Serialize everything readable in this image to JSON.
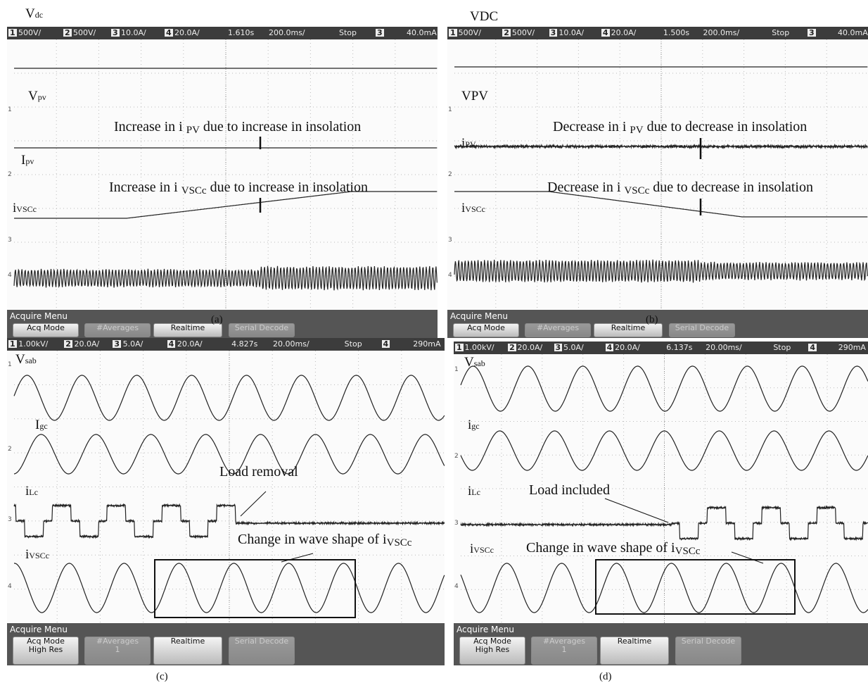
{
  "panels": [
    {
      "caption": "(a)",
      "title": {
        "base": "V",
        "sub": "dc"
      },
      "status": [
        "1",
        "500V/",
        "2",
        "500V/",
        "3",
        "10.0A/",
        "4",
        "20.0A/",
        "1.610s",
        "200.0ms/",
        "Stop",
        "3",
        "40.0mA"
      ],
      "markers": [
        "1",
        "2",
        "3",
        "4"
      ],
      "traces": [
        {
          "base": "V",
          "sub": "pv"
        },
        {
          "base": "I",
          "sub": "pv"
        },
        {
          "base": "i",
          "sub": "VSCc"
        }
      ],
      "annotations": [
        [
          "Increase in i ",
          "PV",
          " due to increase in insolation"
        ],
        [
          "Increase in i ",
          "VSCc",
          " due to increase in insolation"
        ]
      ],
      "menu": {
        "title": "Acquire Menu",
        "buttons": [
          [
            "Acq Mode"
          ],
          [
            "#Averages"
          ],
          [
            "Realtime"
          ],
          [
            "Serial Decode"
          ]
        ]
      }
    },
    {
      "caption": "(b)",
      "title": {
        "base": "VDC"
      },
      "status": [
        "1",
        "500V/",
        "2",
        "500V/",
        "3",
        "10.0A/",
        "4",
        "20.0A/",
        "1.500s",
        "200.0ms/",
        "Stop",
        "3",
        "40.0mA"
      ],
      "markers": [
        "1",
        "2",
        "3",
        "4"
      ],
      "traces": [
        {
          "base": "VPV"
        },
        {
          "base": "i",
          "sub": "PV"
        },
        {
          "base": "i",
          "sub": "VSCc"
        }
      ],
      "annotations": [
        [
          "Decrease in i ",
          "PV",
          " due to decrease in insolation"
        ],
        [
          "Decrease in i ",
          "VSCc",
          " due to decrease in insolation"
        ]
      ],
      "menu": {
        "title": "Acquire Menu",
        "buttons": [
          [
            "Acq Mode"
          ],
          [
            "#Averages"
          ],
          [
            "Realtime"
          ],
          [
            "Serial Decode"
          ]
        ]
      }
    },
    {
      "caption": "(c)",
      "status": [
        "1",
        "1.00kV/",
        "2",
        "20.0A/",
        "3",
        "5.0A/",
        "4",
        "20.0A/",
        "4.827s",
        "20.00ms/",
        "Stop",
        "4",
        "290mA"
      ],
      "markers": [
        "1",
        "2",
        "3",
        "4"
      ],
      "traces": [
        {
          "base": "V",
          "sub": "sab"
        },
        {
          "base": "I",
          "sub": "gc"
        },
        {
          "base": "i",
          "sub": "Lc"
        },
        {
          "base": "i",
          "sub": "VSCc"
        }
      ],
      "annotations": [
        [
          "Load removal"
        ],
        [
          "Change in wave shape of i",
          "VSCc"
        ]
      ],
      "menu": {
        "title": "Acquire Menu",
        "buttons": [
          [
            "Acq Mode",
            "High Res"
          ],
          [
            "#Averages",
            "1"
          ],
          [
            "Realtime"
          ],
          [
            "Serial Decode"
          ]
        ]
      }
    },
    {
      "caption": "(d)",
      "status": [
        "1",
        "1.00kV/",
        "2",
        "20.0A/",
        "3",
        "5.0A/",
        "4",
        "20.0A/",
        "6.137s",
        "20.00ms/",
        "Stop",
        "4",
        "290mA"
      ],
      "markers": [
        "1",
        "2",
        "3",
        "4"
      ],
      "traces": [
        {
          "base": "V",
          "sub": "sab"
        },
        {
          "base": "i",
          "sub": "gc"
        },
        {
          "base": "i",
          "sub": "Lc"
        },
        {
          "base": "i",
          "sub": "VSCc"
        }
      ],
      "annotations": [
        [
          "Load included"
        ],
        [
          "Change in wave shape of i",
          "VSCc"
        ]
      ],
      "menu": {
        "title": "Acquire Menu",
        "buttons": [
          [
            "Acq Mode",
            "High Res"
          ],
          [
            "#Averages",
            "1"
          ],
          [
            "Realtime"
          ],
          [
            "Serial Decode"
          ]
        ]
      }
    }
  ]
}
